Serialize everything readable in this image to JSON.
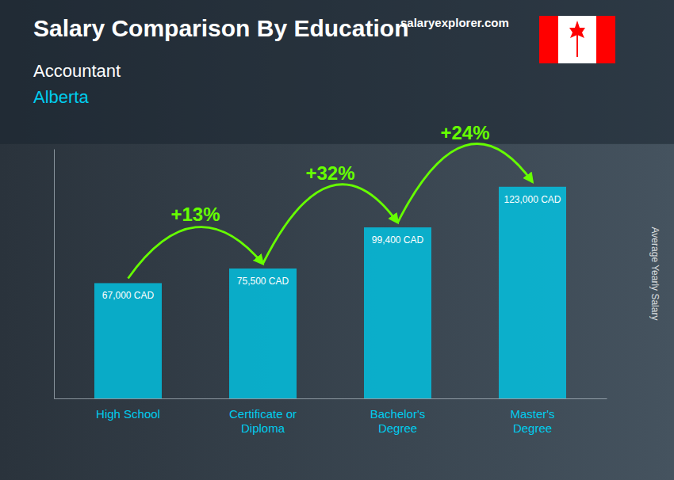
{
  "chart_data": {
    "type": "bar",
    "title": "Salary Comparison By Education",
    "subtitle": [
      "Accountant",
      "Alberta"
    ],
    "ylabel": "Average Yearly Salary",
    "categories": [
      "High School",
      "Certificate or\nDiploma",
      "Bachelor's\nDegree",
      "Master's\nDegree"
    ],
    "values": [
      67000,
      75500,
      99400,
      123000
    ],
    "value_labels": [
      "67,000 CAD",
      "75,500 CAD",
      "99,400 CAD",
      "123,000 CAD"
    ],
    "data_labels": true,
    "annotations": [
      "+13%",
      "+32%",
      "+24%",
      "salaryexplorer.com"
    ],
    "color": "#00c8e8",
    "ylim": [
      0,
      145000
    ],
    "grid": false,
    "tick_labels": "x"
  }
}
